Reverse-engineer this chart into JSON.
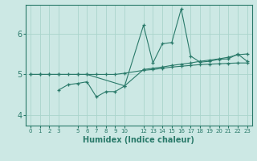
{
  "xlabel": "Humidex (Indice chaleur)",
  "background_color": "#cce8e4",
  "line_color": "#2a7a6a",
  "grid_color": "#aad4cc",
  "xlim": [
    -0.5,
    23.5
  ],
  "ylim": [
    3.75,
    6.7
  ],
  "yticks": [
    4,
    5,
    6
  ],
  "line1_x": [
    0,
    1,
    2,
    3,
    4,
    5,
    6,
    7,
    8,
    9,
    10,
    12,
    13,
    14,
    15,
    16,
    17,
    18,
    19,
    20,
    21,
    22,
    23
  ],
  "line1_y": [
    5.0,
    5.0,
    5.0,
    5.0,
    5.0,
    5.0,
    5.0,
    5.0,
    5.0,
    5.0,
    5.03,
    5.1,
    5.12,
    5.15,
    5.18,
    5.2,
    5.22,
    5.24,
    5.25,
    5.26,
    5.27,
    5.28,
    5.28
  ],
  "line2_x": [
    0,
    1,
    2,
    3,
    5,
    6,
    10,
    12,
    13,
    14,
    15,
    16,
    17,
    18,
    19,
    20,
    21,
    22,
    23
  ],
  "line2_y": [
    5.0,
    5.0,
    5.0,
    5.0,
    5.0,
    5.0,
    4.72,
    6.2,
    5.28,
    5.75,
    5.78,
    6.6,
    5.45,
    5.3,
    5.32,
    5.37,
    5.38,
    5.5,
    5.32
  ],
  "line3_x": [
    3,
    4,
    5,
    6,
    7,
    8,
    9,
    10,
    12,
    13,
    14,
    15,
    16,
    17,
    18,
    19,
    20,
    21,
    22,
    23
  ],
  "line3_y": [
    4.62,
    4.75,
    4.78,
    4.82,
    4.45,
    4.58,
    4.58,
    4.72,
    5.12,
    5.15,
    5.18,
    5.22,
    5.25,
    5.28,
    5.32,
    5.35,
    5.38,
    5.42,
    5.48,
    5.5
  ],
  "xtick_vals": [
    0,
    1,
    2,
    3,
    5,
    6,
    7,
    8,
    9,
    10,
    12,
    13,
    14,
    15,
    16,
    17,
    18,
    19,
    20,
    21,
    22,
    23
  ]
}
